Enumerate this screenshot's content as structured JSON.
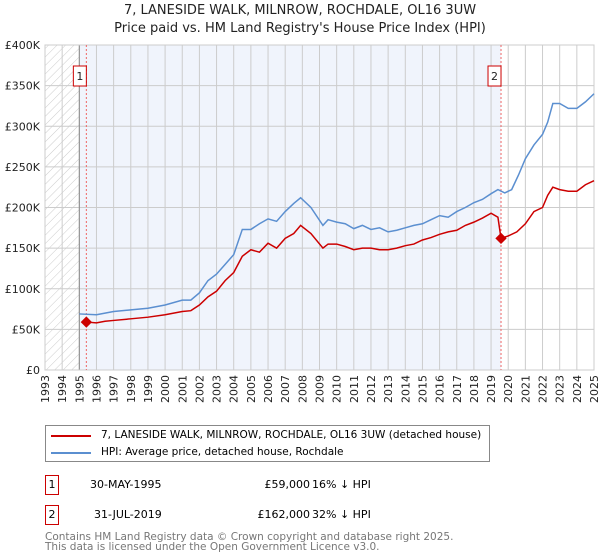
{
  "title": "7, LANESIDE WALK, MILNROW, ROCHDALE, OL16 3UW",
  "subtitle": "Price paid vs. HM Land Registry's House Price Index (HPI)",
  "chart_data": {
    "type": "line",
    "xlim": [
      1993,
      2025
    ],
    "ylim": [
      0,
      400000
    ],
    "yticks": [
      {
        "v": 0,
        "label": "£0"
      },
      {
        "v": 50000,
        "label": "£50K"
      },
      {
        "v": 100000,
        "label": "£100K"
      },
      {
        "v": 150000,
        "label": "£150K"
      },
      {
        "v": 200000,
        "label": "£200K"
      },
      {
        "v": 250000,
        "label": "£250K"
      },
      {
        "v": 300000,
        "label": "£300K"
      },
      {
        "v": 350000,
        "label": "£350K"
      },
      {
        "v": 400000,
        "label": "£400K"
      }
    ],
    "xticks": [
      "1993",
      "1994",
      "1995",
      "1996",
      "1997",
      "1998",
      "1999",
      "2000",
      "2001",
      "2002",
      "2003",
      "2004",
      "2005",
      "2006",
      "2007",
      "2008",
      "2009",
      "2010",
      "2011",
      "2012",
      "2013",
      "2014",
      "2015",
      "2016",
      "2017",
      "2018",
      "2019",
      "2020",
      "2021",
      "2022",
      "2023",
      "2024",
      "2025"
    ],
    "hatched_until": 1995.0,
    "shaded_range": [
      1995.0,
      2019.58
    ],
    "series": [
      {
        "name": "7, LANESIDE WALK, MILNROW, ROCHDALE, OL16 3UW (detached house)",
        "color": "#cc0000",
        "x": [
          1995.41,
          1996,
          1996.5,
          1997,
          1998,
          1999,
          2000,
          2001,
          2001.5,
          2002,
          2002.5,
          2003,
          2003.5,
          2004,
          2004.5,
          2005,
          2005.5,
          2006,
          2006.5,
          2007,
          2007.5,
          2007.9,
          2008.5,
          2009.2,
          2009.5,
          2010,
          2010.5,
          2011,
          2011.5,
          2012,
          2012.5,
          2013,
          2013.5,
          2014,
          2014.5,
          2015,
          2015.5,
          2016,
          2016.5,
          2017,
          2017.5,
          2018,
          2018.5,
          2019,
          2019.4,
          2019.58,
          2020,
          2020.5,
          2021,
          2021.5,
          2022,
          2022.3,
          2022.6,
          2023,
          2023.5,
          2024,
          2024.5,
          2025
        ],
        "y": [
          59000,
          58000,
          60000,
          61000,
          63000,
          65000,
          68000,
          72000,
          73000,
          80000,
          90000,
          97000,
          110000,
          120000,
          140000,
          148000,
          145000,
          156000,
          150000,
          162000,
          168000,
          178000,
          168000,
          150000,
          155000,
          155000,
          152000,
          148000,
          150000,
          150000,
          148000,
          148000,
          150000,
          153000,
          155000,
          160000,
          163000,
          167000,
          170000,
          172000,
          178000,
          182000,
          187000,
          193000,
          188000,
          162000,
          165000,
          170000,
          180000,
          195000,
          200000,
          215000,
          225000,
          222000,
          220000,
          220000,
          228000,
          233000
        ]
      },
      {
        "name": "HPI: Average price, detached house, Rochdale",
        "color": "#5b8fd0",
        "x": [
          1995.0,
          1996,
          1996.5,
          1997,
          1998,
          1999,
          2000,
          2001,
          2001.5,
          2002,
          2002.5,
          2003,
          2003.5,
          2004,
          2004.5,
          2005,
          2005.5,
          2006,
          2006.5,
          2007,
          2007.5,
          2007.9,
          2008.5,
          2009.2,
          2009.5,
          2010,
          2010.5,
          2011,
          2011.5,
          2012,
          2012.5,
          2013,
          2013.5,
          2014,
          2014.5,
          2015,
          2015.5,
          2016,
          2016.5,
          2017,
          2017.5,
          2018,
          2018.5,
          2019,
          2019.4,
          2019.8,
          2020.2,
          2020.6,
          2021,
          2021.5,
          2022,
          2022.3,
          2022.6,
          2023,
          2023.5,
          2024,
          2024.5,
          2025
        ],
        "y": [
          69000,
          68000,
          70000,
          72000,
          74000,
          76000,
          80000,
          86000,
          86000,
          95000,
          110000,
          118000,
          130000,
          142000,
          173000,
          173000,
          180000,
          186000,
          183000,
          195000,
          205000,
          212000,
          200000,
          178000,
          185000,
          182000,
          180000,
          174000,
          178000,
          173000,
          175000,
          170000,
          172000,
          175000,
          178000,
          180000,
          185000,
          190000,
          188000,
          195000,
          200000,
          206000,
          210000,
          217000,
          222000,
          218000,
          222000,
          240000,
          260000,
          277000,
          290000,
          305000,
          328000,
          328000,
          322000,
          322000,
          330000,
          340000
        ]
      }
    ],
    "sales": [
      {
        "id": "1",
        "x": 1995.41,
        "y": 59000
      },
      {
        "id": "2",
        "x": 2019.58,
        "y": 162000
      }
    ]
  },
  "legend": {
    "red": "7, LANESIDE WALK, MILNROW, ROCHDALE, OL16 3UW (detached house)",
    "blue": "HPI: Average price, detached house, Rochdale"
  },
  "table": [
    {
      "id": "1",
      "date": "30-MAY-1995",
      "price": "£59,000",
      "delta": "16% ↓ HPI"
    },
    {
      "id": "2",
      "date": "31-JUL-2019",
      "price": "£162,000",
      "delta": "32% ↓ HPI"
    }
  ],
  "footer": [
    "Contains HM Land Registry data © Crown copyright and database right 2025.",
    "This data is licensed under the Open Government Licence v3.0."
  ]
}
